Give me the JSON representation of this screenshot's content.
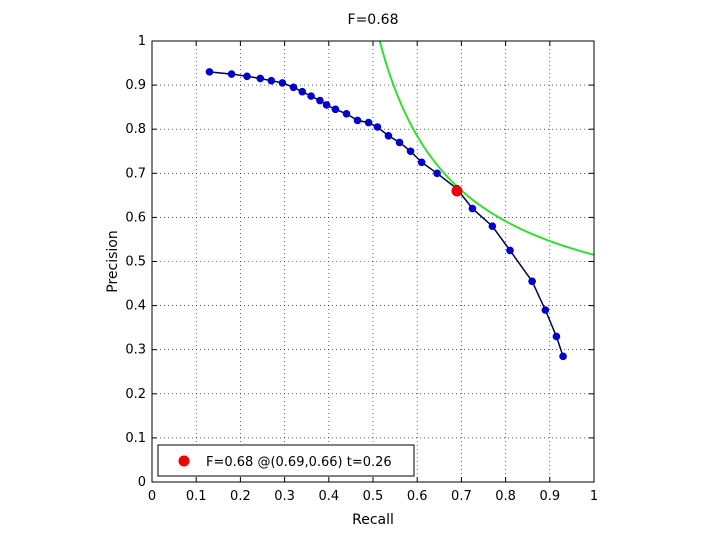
{
  "chart_data": {
    "type": "line",
    "title": "F=0.68",
    "xlabel": "Recall",
    "ylabel": "Precision",
    "xlim": [
      0,
      1
    ],
    "ylim": [
      0,
      1
    ],
    "xticks": [
      0,
      0.1,
      0.2,
      0.3,
      0.4,
      0.5,
      0.6,
      0.7,
      0.8,
      0.9,
      1
    ],
    "xtick_labels": [
      "0",
      "0.1",
      "0.2",
      "0.3",
      "0.4",
      "0.5",
      "0.6",
      "0.7",
      "0.8",
      "0.9",
      "1"
    ],
    "yticks": [
      0,
      0.1,
      0.2,
      0.3,
      0.4,
      0.5,
      0.6,
      0.7,
      0.8,
      0.9,
      1
    ],
    "ytick_labels": [
      "0",
      "0.1",
      "0.2",
      "0.3",
      "0.4",
      "0.5",
      "0.6",
      "0.7",
      "0.8",
      "0.9",
      "1"
    ],
    "grid": true,
    "legend_position": "bottom-left",
    "pr_curve": {
      "color": "#0000cc",
      "x": [
        0.13,
        0.18,
        0.215,
        0.245,
        0.27,
        0.295,
        0.32,
        0.34,
        0.36,
        0.38,
        0.395,
        0.415,
        0.44,
        0.465,
        0.49,
        0.51,
        0.535,
        0.56,
        0.585,
        0.61,
        0.645,
        0.69,
        0.725,
        0.77,
        0.81,
        0.86,
        0.89,
        0.915,
        0.93
      ],
      "y": [
        0.93,
        0.925,
        0.92,
        0.915,
        0.91,
        0.905,
        0.895,
        0.885,
        0.875,
        0.865,
        0.855,
        0.845,
        0.835,
        0.82,
        0.815,
        0.805,
        0.785,
        0.77,
        0.75,
        0.725,
        0.7,
        0.665,
        0.62,
        0.58,
        0.525,
        0.455,
        0.39,
        0.33,
        0.285
      ]
    },
    "best_point": {
      "color": "#ee0000",
      "x": 0.69,
      "y": 0.66
    },
    "iso_f_curve": {
      "color": "#33dd33",
      "f": 0.68
    },
    "legend": {
      "entries": [
        "F=0.68 @(0.69,0.66) t=0.26"
      ]
    }
  }
}
